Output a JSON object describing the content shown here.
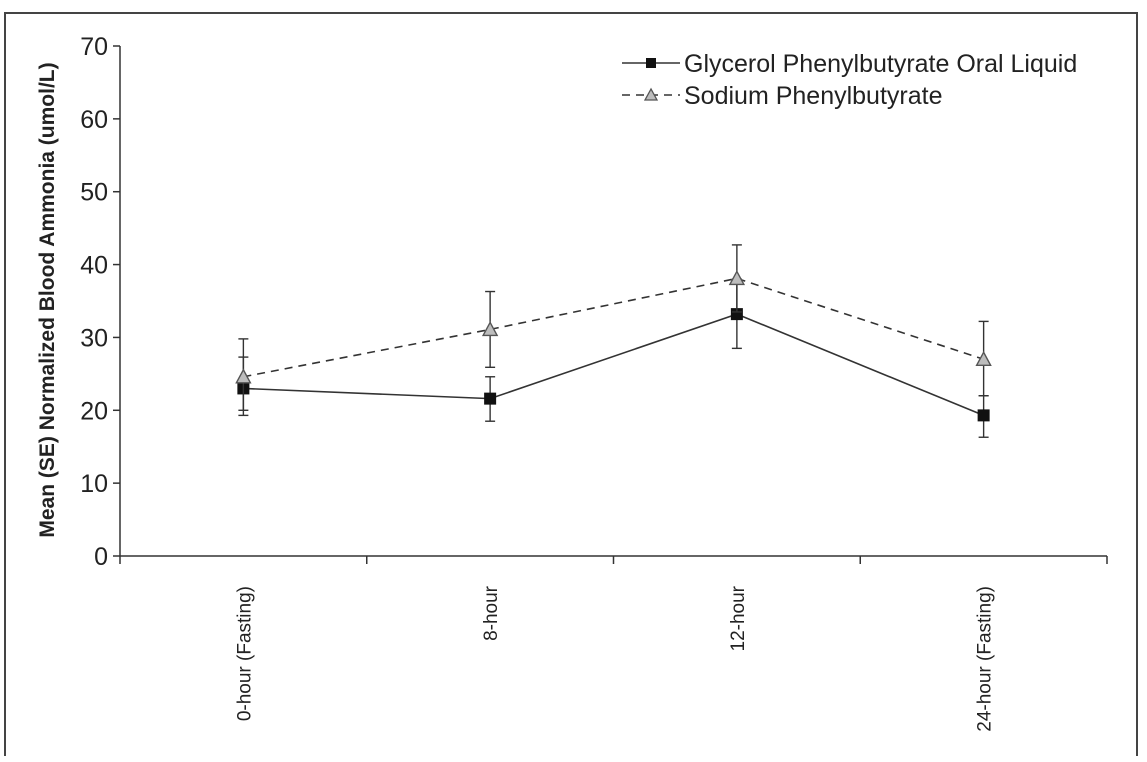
{
  "chart_data": {
    "type": "line",
    "title": "",
    "xlabel": "",
    "ylabel": "Mean (SE) Normalized Blood Ammonia (umol/L)",
    "ylim": [
      0,
      70
    ],
    "yticks": [
      0,
      10,
      20,
      30,
      40,
      50,
      60,
      70
    ],
    "categories": [
      "0-hour (Fasting)",
      "8-hour",
      "12-hour",
      "24-hour (Fasting)"
    ],
    "grid": false,
    "legend_position": "top-right",
    "series": [
      {
        "name": "Glycerol Phenylbutyrate Oral Liquid",
        "style": "solid",
        "marker": "filled-square",
        "values": [
          23.0,
          21.6,
          33.2,
          19.3
        ],
        "se_lower": [
          19.3,
          18.5,
          28.5,
          16.3
        ],
        "se_upper": [
          27.3,
          24.6,
          38.0,
          22.0
        ]
      },
      {
        "name": "Sodium Phenylbutyrate",
        "style": "dashed",
        "marker": "open-triangle",
        "values": [
          24.6,
          31.1,
          38.1,
          27.0
        ],
        "se_lower": [
          20.0,
          25.9,
          33.5,
          22.0
        ],
        "se_upper": [
          29.8,
          36.3,
          42.7,
          32.2
        ]
      }
    ]
  }
}
